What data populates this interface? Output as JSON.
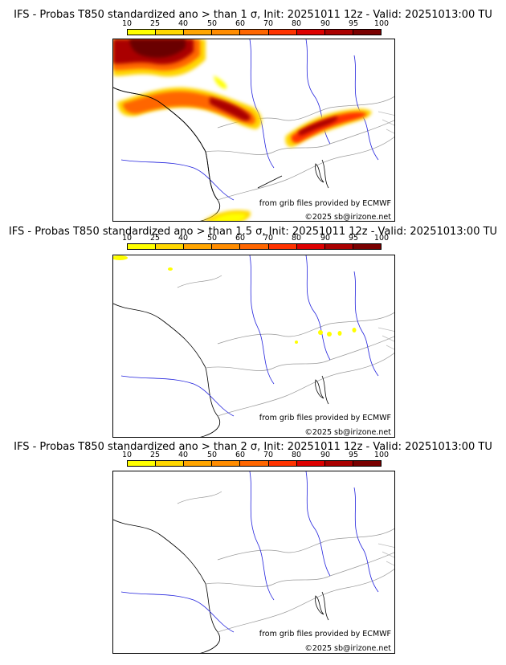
{
  "legend": {
    "ticks": [
      "10",
      "25",
      "40",
      "50",
      "60",
      "70",
      "80",
      "90",
      "95",
      "100"
    ],
    "colors": [
      "#ffff00",
      "#ffd700",
      "#ffa500",
      "#ff8c00",
      "#ff6600",
      "#ff3300",
      "#dd0000",
      "#aa0000",
      "#7a0000"
    ]
  },
  "panels": [
    {
      "title": "IFS - Probas T850  standardized ano > than 1 σ, Init: 20251011 12z - Valid: 20251013:00 TU",
      "credit_source": "from grib files provided by ECMWF",
      "credit_copyright": "©2025 sb@irizone.net"
    },
    {
      "title": "IFS - Probas T850  standardized ano > than 1.5 σ, Init: 20251011 12z - Valid: 20251013:00 TU",
      "credit_source": "from grib files provided by ECMWF",
      "credit_copyright": "©2025 sb@irizone.net"
    },
    {
      "title": "IFS - Probas T850  standardized ano > than 2 σ, Init: 20251011 12z - Valid: 20251013:00 TU",
      "credit_source": "from grib files provided by ECMWF",
      "credit_copyright": "©2025 sb@irizone.net"
    }
  ]
}
